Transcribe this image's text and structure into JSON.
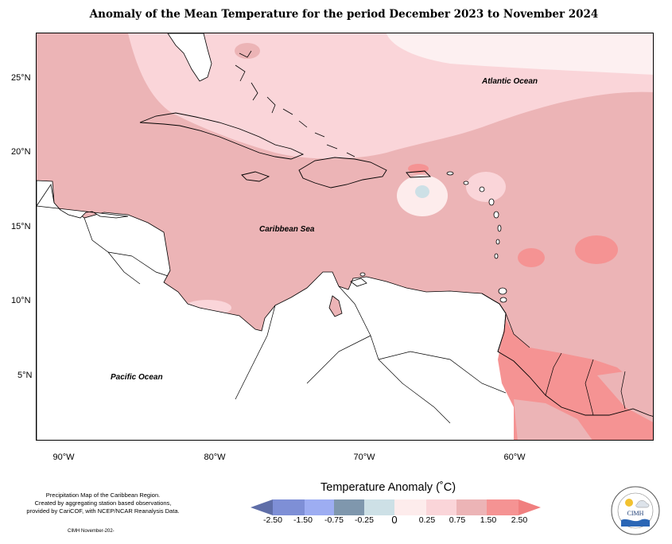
{
  "title": "Anomaly of the Mean Temperature for the period December 2023 to November 2024",
  "map": {
    "y_axis_labels": [
      "25°N",
      "20°N",
      "15°N",
      "10°N",
      "5°N"
    ],
    "x_axis_labels": [
      "90°W",
      "80°W",
      "70°W",
      "60°W"
    ],
    "ocean_labels": {
      "atlantic": "Atlantic Ocean",
      "caribbean": "Caribbean Sea",
      "pacific": "Pacific Ocean"
    }
  },
  "legend": {
    "title": "Temperature Anomaly (˚C)",
    "bins": [
      {
        "color": "#5f6ea8"
      },
      {
        "color": "#7e8fd6"
      },
      {
        "color": "#9dadf2"
      },
      {
        "color": "#7f97ad"
      },
      {
        "color": "#cde0e6"
      },
      {
        "color": "#fdecec"
      },
      {
        "color": "#fad5d9"
      },
      {
        "color": "#ecb4b6"
      },
      {
        "color": "#f59393"
      },
      {
        "color": "#f07f7f"
      }
    ],
    "values": [
      "-2.50",
      "-1.50",
      "-0.75",
      "-0.25",
      "0",
      "0.25",
      "0.75",
      "1.50",
      "2.50"
    ]
  },
  "notes": {
    "line1": "Precipitation Map of the Caribbean Region.",
    "line2": "Created by aggregating station based observations,",
    "line3": "provided by CariCOF, with NCEP/NCAR Reanalysis Data.",
    "credit": "CIMH November-202-"
  },
  "logo": {
    "text": "CIMH",
    "ring_text": "Caribbean Institute for Meteorology and Hydrology",
    "icon": "cimh-logo-icon"
  }
}
